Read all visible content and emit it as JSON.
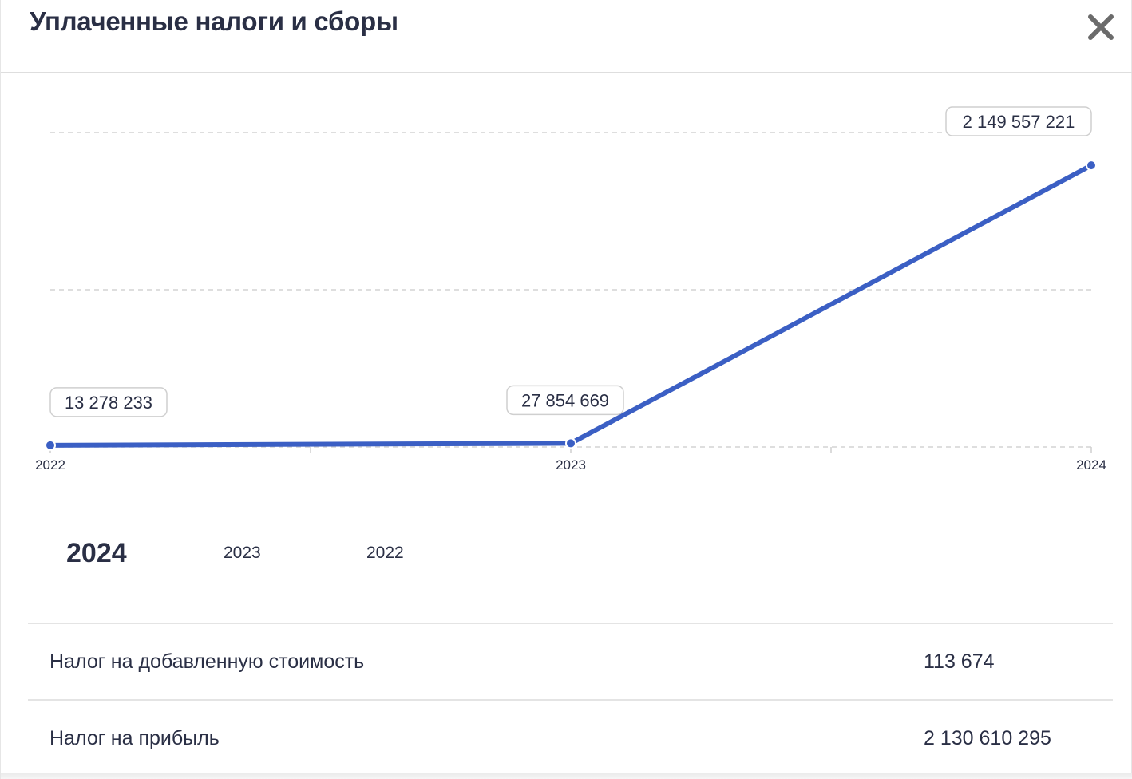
{
  "dialog": {
    "title": "Уплаченные налоги и сборы",
    "close_icon": "close-icon"
  },
  "chart_data": {
    "type": "line",
    "x": [
      "2022",
      "2023",
      "2024"
    ],
    "series": [
      {
        "values": [
          13278233,
          27854669,
          2149557221
        ],
        "labels": [
          "13 278 233",
          "27 854 669",
          "2 149 557 221"
        ],
        "color": "#3b5fc4"
      }
    ],
    "xlabel": "",
    "ylabel": "",
    "ylim": [
      0,
      2400000000
    ],
    "grid": true,
    "legend": "none"
  },
  "year_tabs": {
    "active": "2024",
    "items": [
      "2024",
      "2023",
      "2022"
    ]
  },
  "taxes": [
    {
      "name": "Налог на добавленную стоимость",
      "value": "113 674"
    },
    {
      "name": "Налог на прибыль",
      "value": "2 130 610 295"
    }
  ]
}
